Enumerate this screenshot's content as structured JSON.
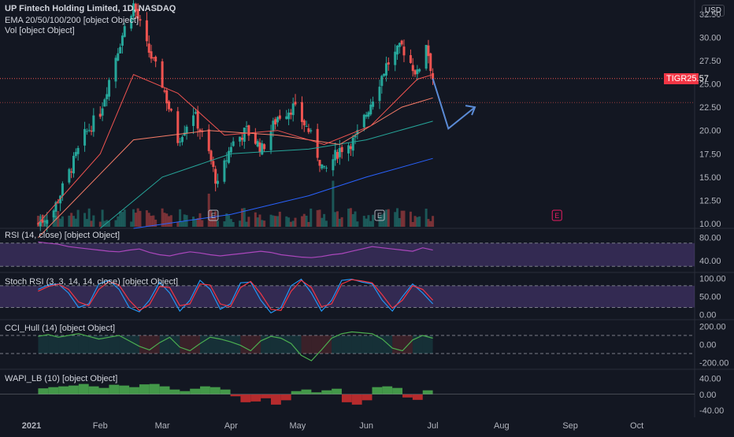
{
  "header": {
    "title": "UP Fintech Holding Limited, 1D, NASDAQ",
    "ema_label": "EMA 20/50/100/200 [object Object]",
    "vol_label": "Vol [object Object]",
    "currency": "USD"
  },
  "price_tag": {
    "symbol": "TIGR",
    "value": "25.57"
  },
  "panes": {
    "rsi_label": "RSI (14, close) [object Object]",
    "stoch_label": "Stoch RSI (3, 3, 14, 14, close) [object Object]",
    "cci_label": "CCI_Hull (14) [object Object]",
    "wapi_label": "WAPI_LB (10) [object Object]"
  },
  "colors": {
    "background": "#131722",
    "up": "#26a69a",
    "down": "#ef5350",
    "ema20": "#ef5350",
    "ema50": "#f77c68",
    "ema100": "#26a69a",
    "ema200": "#2962ff",
    "rsi_band": "#7e57c2",
    "stoch_k": "#2196f3",
    "stoch_d": "#f23645",
    "arrow": "#5b8bd6"
  },
  "chart_data": [
    {
      "name": "price",
      "type": "candlestick",
      "title": "UP Fintech Holding Limited, 1D, NASDAQ",
      "y_ticks": [
        10.0,
        12.5,
        15.0,
        17.5,
        20.0,
        22.5,
        25.0,
        27.5,
        30.0,
        32.5
      ],
      "ylim": [
        9.5,
        34.0
      ],
      "x_ticks": [
        "2021",
        "Feb",
        "Mar",
        "Apr",
        "May",
        "Jun",
        "Jul",
        "Aug",
        "Sep",
        "Oct"
      ],
      "last_price": 25.57,
      "earnings_markers": [
        "E",
        "E",
        "E"
      ],
      "close_path": [
        [
          "2021-01-04",
          10.0
        ],
        [
          "2021-01-11",
          11.5
        ],
        [
          "2021-01-18",
          15.5
        ],
        [
          "2021-01-25",
          19.5
        ],
        [
          "2021-02-01",
          22.0
        ],
        [
          "2021-02-08",
          28.0
        ],
        [
          "2021-02-12",
          31.0
        ],
        [
          "2021-02-16",
          33.5
        ],
        [
          "2021-02-22",
          29.0
        ],
        [
          "2021-03-01",
          25.0
        ],
        [
          "2021-03-08",
          19.0
        ],
        [
          "2021-03-15",
          22.0
        ],
        [
          "2021-03-22",
          17.5
        ],
        [
          "2021-03-26",
          14.0
        ],
        [
          "2021-04-01",
          18.5
        ],
        [
          "2021-04-08",
          20.0
        ],
        [
          "2021-04-15",
          18.0
        ],
        [
          "2021-04-22",
          21.5
        ],
        [
          "2021-04-29",
          22.5
        ],
        [
          "2021-05-06",
          20.0
        ],
        [
          "2021-05-13",
          15.5
        ],
        [
          "2021-05-20",
          18.0
        ],
        [
          "2021-05-27",
          19.0
        ],
        [
          "2021-06-03",
          23.0
        ],
        [
          "2021-06-10",
          27.0
        ],
        [
          "2021-06-17",
          29.0
        ],
        [
          "2021-06-24",
          26.0
        ],
        [
          "2021-06-28",
          29.5
        ],
        [
          "2021-07-01",
          25.57
        ]
      ],
      "ema20": [
        [
          "2021-01-04",
          10.0
        ],
        [
          "2021-02-01",
          17.5
        ],
        [
          "2021-02-16",
          26.0
        ],
        [
          "2021-03-08",
          24.0
        ],
        [
          "2021-03-29",
          19.5
        ],
        [
          "2021-04-22",
          20.0
        ],
        [
          "2021-05-13",
          18.5
        ],
        [
          "2021-06-03",
          20.5
        ],
        [
          "2021-06-24",
          25.5
        ],
        [
          "2021-07-01",
          26.0
        ]
      ],
      "ema50": [
        [
          "2021-01-04",
          8.5
        ],
        [
          "2021-02-16",
          19.0
        ],
        [
          "2021-03-22",
          20.0
        ],
        [
          "2021-04-22",
          19.5
        ],
        [
          "2021-05-20",
          18.5
        ],
        [
          "2021-06-17",
          22.5
        ],
        [
          "2021-07-01",
          23.5
        ]
      ],
      "ema100": [
        [
          "2021-02-01",
          9.5
        ],
        [
          "2021-03-01",
          15.0
        ],
        [
          "2021-04-01",
          17.5
        ],
        [
          "2021-05-06",
          18.0
        ],
        [
          "2021-06-01",
          19.0
        ],
        [
          "2021-07-01",
          21.0
        ]
      ],
      "ema200": [
        [
          "2021-02-16",
          9.5
        ],
        [
          "2021-04-01",
          11.0
        ],
        [
          "2021-05-06",
          13.0
        ],
        [
          "2021-06-01",
          15.0
        ],
        [
          "2021-07-01",
          17.0
        ]
      ],
      "projection": [
        [
          "2021-07-01",
          25.57
        ],
        [
          "2021-07-08",
          20.2
        ],
        [
          "2021-07-20",
          22.5
        ]
      ]
    },
    {
      "name": "rsi",
      "type": "line",
      "title": "RSI (14, close) [object Object]",
      "y_ticks": [
        40.0,
        80.0
      ],
      "ylim": [
        25,
        90
      ],
      "bands": [
        30,
        70
      ],
      "values": [
        72,
        70,
        68,
        64,
        62,
        60,
        58,
        56,
        55,
        58,
        60,
        54,
        50,
        48,
        52,
        55,
        53,
        50,
        48,
        50,
        52,
        54,
        56,
        54,
        50,
        48,
        46,
        45,
        47,
        50,
        52,
        56,
        60,
        64,
        62,
        60,
        58,
        56,
        62,
        58
      ]
    },
    {
      "name": "stoch_rsi",
      "type": "line",
      "title": "Stoch RSI (3, 3, 14, 14, close) [object Object]",
      "y_ticks": [
        0.0,
        50.0,
        100.0
      ],
      "ylim": [
        -5,
        108
      ],
      "bands": [
        20,
        80
      ],
      "k": [
        70,
        82,
        85,
        60,
        20,
        30,
        85,
        95,
        70,
        20,
        8,
        40,
        90,
        60,
        10,
        40,
        95,
        70,
        15,
        30,
        88,
        90,
        40,
        5,
        20,
        80,
        98,
        60,
        10,
        40,
        95,
        98,
        90,
        85,
        40,
        10,
        50,
        85,
        60,
        30
      ],
      "d": [
        65,
        78,
        84,
        70,
        35,
        25,
        70,
        92,
        82,
        40,
        12,
        28,
        78,
        75,
        25,
        30,
        85,
        82,
        30,
        22,
        75,
        92,
        58,
        15,
        12,
        65,
        95,
        75,
        22,
        30,
        85,
        97,
        93,
        88,
        55,
        18,
        40,
        80,
        70,
        40
      ]
    },
    {
      "name": "cci_hull",
      "type": "area",
      "title": "CCI_Hull (14) [object Object]",
      "y_ticks": [
        -200.0,
        0.0,
        200.0
      ],
      "ylim": [
        -240,
        240
      ],
      "bands": [
        -100,
        100
      ],
      "values": [
        90,
        110,
        80,
        100,
        120,
        90,
        60,
        80,
        100,
        40,
        -20,
        -60,
        20,
        80,
        -30,
        -70,
        10,
        80,
        60,
        30,
        -10,
        -70,
        40,
        90,
        70,
        10,
        -120,
        -180,
        -60,
        70,
        120,
        140,
        130,
        120,
        60,
        -40,
        -70,
        50,
        100,
        70
      ]
    },
    {
      "name": "wapi",
      "type": "histogram",
      "title": "WAPI_LB (10) [object Object]",
      "y_ticks": [
        -40.0,
        0.0,
        40.0
      ],
      "ylim": [
        -50,
        55
      ],
      "values": [
        15,
        18,
        20,
        22,
        26,
        20,
        16,
        24,
        22,
        18,
        25,
        26,
        20,
        12,
        8,
        14,
        20,
        18,
        12,
        -5,
        -20,
        -18,
        -10,
        -26,
        -15,
        8,
        12,
        5,
        10,
        14,
        -20,
        -26,
        -15,
        18,
        20,
        16,
        -8,
        -14,
        10,
        16
      ]
    }
  ]
}
